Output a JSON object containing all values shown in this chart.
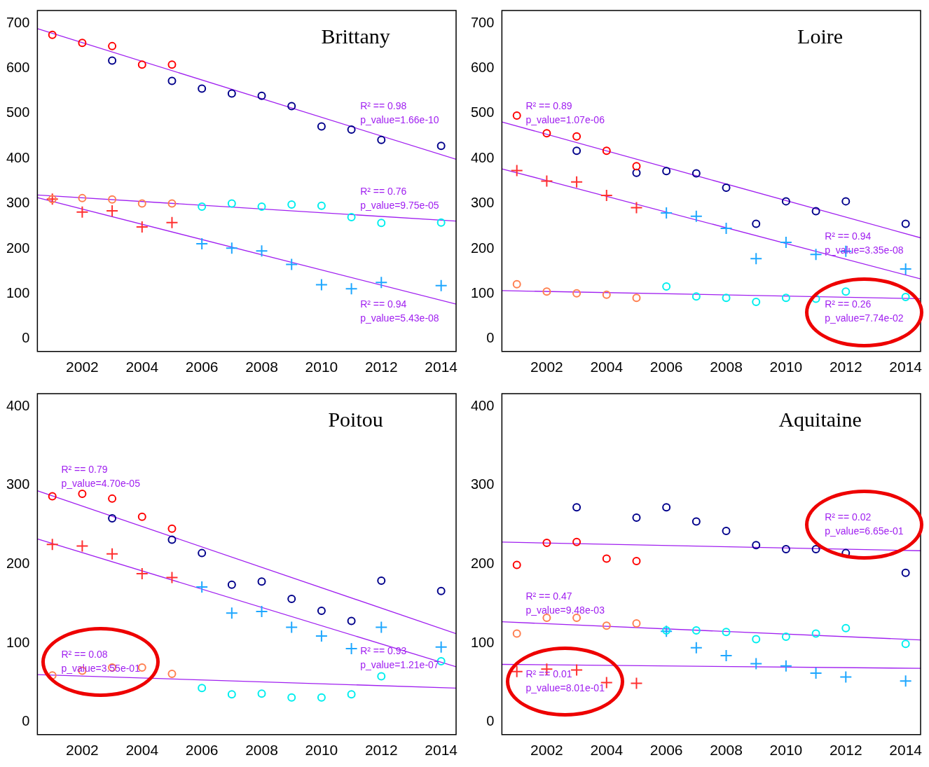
{
  "chart_data": [
    {
      "type": "scatter",
      "title": "Brittany",
      "xlim": [
        2000.5,
        2014.5
      ],
      "xticks": [
        2002,
        2004,
        2006,
        2008,
        2010,
        2012,
        2014
      ],
      "ylim": [
        -28,
        728
      ],
      "yticks": [
        0,
        100,
        200,
        300,
        400,
        500,
        600,
        700
      ],
      "series": [
        {
          "color": "#ff0000",
          "marker": "circle",
          "x": [
            2001,
            2002,
            2003,
            2004,
            2005
          ],
          "values": [
            674,
            656,
            649,
            608,
            608
          ]
        },
        {
          "color": "#00008b",
          "marker": "circle",
          "x": [
            2003,
            2005,
            2006,
            2007,
            2008,
            2009,
            2010,
            2011,
            2012,
            2014
          ],
          "values": [
            617,
            572,
            555,
            544,
            539,
            516,
            471,
            464,
            441,
            428
          ]
        },
        {
          "color": "#ff7f50",
          "marker": "circle",
          "x": [
            2001,
            2002,
            2003,
            2004,
            2005
          ],
          "values": [
            310,
            312,
            309,
            300,
            300
          ]
        },
        {
          "color": "#00eeee",
          "marker": "circle",
          "x": [
            2006,
            2007,
            2008,
            2009,
            2010,
            2011,
            2012,
            2014
          ],
          "values": [
            293,
            300,
            293,
            298,
            295,
            270,
            257,
            258
          ]
        },
        {
          "color": "#ff3030",
          "marker": "cross",
          "x": [
            2001,
            2002,
            2003,
            2004,
            2005
          ],
          "values": [
            310,
            281,
            284,
            248,
            258
          ]
        },
        {
          "color": "#1ea7ff",
          "marker": "cross",
          "x": [
            2006,
            2007,
            2008,
            2009,
            2010,
            2011,
            2012,
            2014
          ],
          "values": [
            211,
            201,
            195,
            165,
            120,
            111,
            125,
            118
          ]
        },
        {
          "type": "line",
          "color": "#a020f0",
          "marker": "none",
          "x": [
            2000.5,
            2014.5
          ],
          "values": [
            688,
            398
          ]
        },
        {
          "type": "line",
          "color": "#a020f0",
          "marker": "none",
          "x": [
            2000.5,
            2014.5
          ],
          "values": [
            319,
            261
          ]
        },
        {
          "type": "line",
          "color": "#a020f0",
          "marker": "none",
          "x": [
            2000.5,
            2014.5
          ],
          "values": [
            313,
            77
          ]
        }
      ],
      "annotations": [
        "R² == 0.98\np_value=1.66e-10",
        "R² == 0.76\np_value=9.75e-05",
        "R² == 0.94\np_value=5.43e-08"
      ]
    },
    {
      "type": "scatter",
      "title": "Loire",
      "xlim": [
        2000.5,
        2014.5
      ],
      "xticks": [
        2002,
        2004,
        2006,
        2008,
        2010,
        2012,
        2014
      ],
      "ylim": [
        -28,
        728
      ],
      "yticks": [
        0,
        100,
        200,
        300,
        400,
        500,
        600,
        700
      ],
      "series": [
        {
          "color": "#ff0000",
          "marker": "circle",
          "x": [
            2001,
            2002,
            2003,
            2004,
            2005
          ],
          "values": [
            495,
            456,
            449,
            417,
            383
          ]
        },
        {
          "color": "#00008b",
          "marker": "circle",
          "x": [
            2003,
            2005,
            2006,
            2007,
            2008,
            2009,
            2010,
            2011,
            2012,
            2014
          ],
          "values": [
            417,
            368,
            372,
            367,
            335,
            255,
            305,
            283,
            305,
            255
          ]
        },
        {
          "color": "#ff7f50",
          "marker": "circle",
          "x": [
            2001,
            2002,
            2003,
            2004,
            2005
          ],
          "values": [
            121,
            105,
            101,
            98,
            91
          ]
        },
        {
          "color": "#00eeee",
          "marker": "circle",
          "x": [
            2006,
            2007,
            2008,
            2009,
            2010,
            2011,
            2012,
            2014
          ],
          "values": [
            116,
            94,
            91,
            82,
            91,
            89,
            105,
            93
          ]
        },
        {
          "color": "#ff3030",
          "marker": "cross",
          "x": [
            2001,
            2002,
            2003,
            2004,
            2005
          ],
          "values": [
            373,
            350,
            348,
            318,
            291
          ]
        },
        {
          "color": "#1ea7ff",
          "marker": "cross",
          "x": [
            2006,
            2007,
            2008,
            2009,
            2010,
            2011,
            2012,
            2014
          ],
          "values": [
            279,
            272,
            245,
            178,
            214,
            187,
            194,
            155
          ]
        },
        {
          "type": "line",
          "color": "#a020f0",
          "marker": "none",
          "x": [
            2000.5,
            2014.5
          ],
          "values": [
            481,
            224
          ]
        },
        {
          "type": "line",
          "color": "#a020f0",
          "marker": "none",
          "x": [
            2000.5,
            2014.5
          ],
          "values": [
            377,
            133
          ]
        },
        {
          "type": "line",
          "color": "#a020f0",
          "marker": "none",
          "x": [
            2000.5,
            2014.5
          ],
          "values": [
            107,
            89
          ]
        }
      ],
      "annotations": [
        "R² == 0.89\np_value=1.07e-06",
        "R² == 0.94\np_value=3.35e-08",
        "R² == 0.26\np_value=7.74e-02"
      ]
    },
    {
      "type": "scatter",
      "title": "Poitou",
      "xlim": [
        2000.5,
        2014.5
      ],
      "xticks": [
        2002,
        2004,
        2006,
        2008,
        2010,
        2012,
        2014
      ],
      "ylim": [
        -16,
        416
      ],
      "yticks": [
        0,
        100,
        200,
        300,
        400
      ],
      "series": [
        {
          "color": "#ff0000",
          "marker": "circle",
          "x": [
            2001,
            2002,
            2003,
            2004,
            2005
          ],
          "values": [
            286,
            289,
            283,
            260,
            245
          ]
        },
        {
          "color": "#00008b",
          "marker": "circle",
          "x": [
            2003,
            2005,
            2006,
            2007,
            2008,
            2009,
            2010,
            2011,
            2012,
            2014
          ],
          "values": [
            258,
            231,
            214,
            174,
            178,
            156,
            141,
            128,
            179,
            166
          ]
        },
        {
          "color": "#ff7f50",
          "marker": "circle",
          "x": [
            2001,
            2002,
            2003,
            2004,
            2005
          ],
          "values": [
            59,
            65,
            69,
            69,
            61
          ]
        },
        {
          "color": "#00eeee",
          "marker": "circle",
          "x": [
            2006,
            2007,
            2008,
            2009,
            2010,
            2011,
            2012,
            2014
          ],
          "values": [
            43,
            35,
            36,
            31,
            31,
            35,
            58,
            77
          ]
        },
        {
          "color": "#ff3030",
          "marker": "cross",
          "x": [
            2001,
            2002,
            2003,
            2004,
            2005
          ],
          "values": [
            225,
            223,
            213,
            188,
            183
          ]
        },
        {
          "color": "#1ea7ff",
          "marker": "cross",
          "x": [
            2006,
            2007,
            2008,
            2009,
            2010,
            2011,
            2012,
            2014
          ],
          "values": [
            171,
            138,
            140,
            120,
            109,
            93,
            120,
            95
          ]
        },
        {
          "type": "line",
          "color": "#a020f0",
          "marker": "none",
          "x": [
            2000.5,
            2014.5
          ],
          "values": [
            293,
            112
          ]
        },
        {
          "type": "line",
          "color": "#a020f0",
          "marker": "none",
          "x": [
            2000.5,
            2014.5
          ],
          "values": [
            232,
            70
          ]
        },
        {
          "type": "line",
          "color": "#a020f0",
          "marker": "none",
          "x": [
            2000.5,
            2014.5
          ],
          "values": [
            60,
            43
          ]
        }
      ],
      "annotations": [
        "R² == 0.79\np_value=4.70e-05",
        "R² == 0.93\np_value=1.21e-07",
        "R² == 0.08\np_value=3.55e-01"
      ]
    },
    {
      "type": "scatter",
      "title": "Aquitaine",
      "xlim": [
        2000.5,
        2014.5
      ],
      "xticks": [
        2002,
        2004,
        2006,
        2008,
        2010,
        2012,
        2014
      ],
      "ylim": [
        -16,
        416
      ],
      "yticks": [
        0,
        100,
        200,
        300,
        400
      ],
      "series": [
        {
          "color": "#ff0000",
          "marker": "circle",
          "x": [
            2001,
            2002,
            2003,
            2004,
            2005
          ],
          "values": [
            199,
            227,
            228,
            207,
            204
          ]
        },
        {
          "color": "#00008b",
          "marker": "circle",
          "x": [
            2003,
            2005,
            2006,
            2007,
            2008,
            2009,
            2010,
            2011,
            2012,
            2014
          ],
          "values": [
            272,
            259,
            272,
            254,
            242,
            224,
            219,
            219,
            214,
            189
          ]
        },
        {
          "color": "#ff7f50",
          "marker": "circle",
          "x": [
            2001,
            2002,
            2003,
            2004,
            2005
          ],
          "values": [
            112,
            132,
            132,
            122,
            125
          ]
        },
        {
          "color": "#00eeee",
          "marker": "circle",
          "x": [
            2006,
            2007,
            2008,
            2009,
            2010,
            2011,
            2012,
            2014
          ],
          "values": [
            116,
            116,
            114,
            105,
            108,
            112,
            119,
            99
          ]
        },
        {
          "color": "#ff3030",
          "marker": "cross",
          "x": [
            2001,
            2002,
            2003,
            2004,
            2005
          ],
          "values": [
            64,
            67,
            66,
            50,
            49
          ]
        },
        {
          "color": "#1ea7ff",
          "marker": "cross",
          "x": [
            2006,
            2007,
            2008,
            2009,
            2010,
            2011,
            2012,
            2014
          ],
          "values": [
            115,
            94,
            84,
            74,
            71,
            62,
            57,
            52
          ]
        },
        {
          "type": "line",
          "color": "#a020f0",
          "marker": "none",
          "x": [
            2000.5,
            2014.5
          ],
          "values": [
            228,
            217
          ]
        },
        {
          "type": "line",
          "color": "#a020f0",
          "marker": "none",
          "x": [
            2000.5,
            2014.5
          ],
          "values": [
            127,
            104
          ]
        },
        {
          "type": "line",
          "color": "#a020f0",
          "marker": "none",
          "x": [
            2000.5,
            2014.5
          ],
          "values": [
            73,
            68
          ]
        }
      ],
      "annotations": [
        "R² == 0.02\np_value=6.65e-01",
        "R² == 0.47\np_value=9.48e-03",
        "R² == 0.01\np_value=8.01e-01"
      ]
    }
  ]
}
